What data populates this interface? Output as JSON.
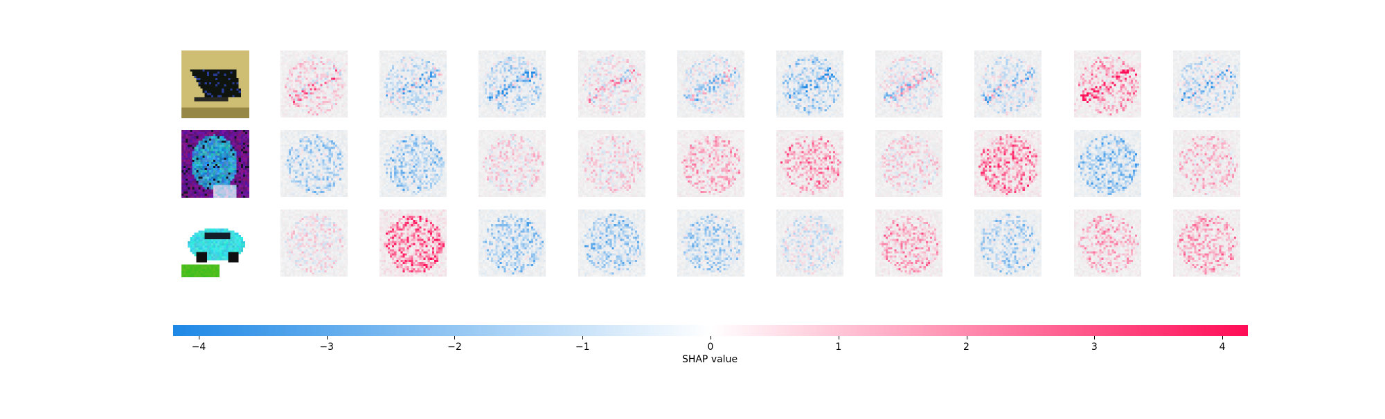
{
  "chart_data": {
    "type": "heatmap",
    "description_kind": "SHAP image explanation grid",
    "rows": [
      {
        "input_image": "boat-on-yellow-background",
        "n_class_maps": 10
      },
      {
        "input_image": "purple-blue-abstract-object",
        "n_class_maps": 10
      },
      {
        "input_image": "cyan-car-on-white",
        "n_class_maps": 10
      }
    ],
    "colorbar": {
      "label": "SHAP value",
      "vmin": -4.2,
      "vmax": 4.2,
      "ticks": [
        -4,
        -3,
        -2,
        -1,
        0,
        1,
        2,
        3,
        4
      ],
      "tick_labels": [
        "−4",
        "−3",
        "−2",
        "−1",
        "0",
        "1",
        "2",
        "3",
        "4"
      ],
      "negative_color": "#1e88e5",
      "neutral_color": "#ffffff",
      "positive_color": "#ff0d57"
    },
    "row_tendencies": [
      [
        0.15,
        -0.2,
        -0.25,
        0.05,
        -0.1,
        -0.3,
        -0.05,
        -0.15,
        0.3,
        -0.2
      ],
      [
        -0.3,
        -0.35,
        0.1,
        0.1,
        0.25,
        0.35,
        0.1,
        0.45,
        -0.4,
        0.2
      ],
      [
        0.05,
        0.55,
        -0.35,
        -0.35,
        -0.3,
        -0.1,
        0.3,
        -0.3,
        0.25,
        0.3
      ]
    ]
  }
}
